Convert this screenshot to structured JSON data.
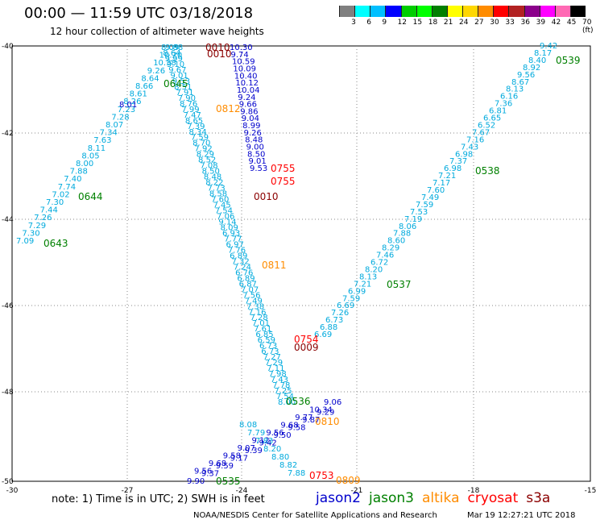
{
  "header": {
    "title": "00:00 — 11:59 UTC 03/18/2018",
    "subtitle": "12 hour collection of altimeter wave heights"
  },
  "legend": {
    "colors": [
      "#808080",
      "#00ffff",
      "#00bfff",
      "#0000ff",
      "#00cd00",
      "#00ff00",
      "#008000",
      "#ffff00",
      "#ffd700",
      "#ff8c00",
      "#ff0000",
      "#b22222",
      "#8b008b",
      "#ff00ff",
      "#ff69b4",
      "#000000"
    ],
    "labels": [
      "3",
      "6",
      "9",
      "12",
      "15",
      "18",
      "21",
      "24",
      "27",
      "30",
      "33",
      "36",
      "39",
      "42",
      "45",
      "70 (ft)"
    ]
  },
  "axes": {
    "lat_labels": [
      "-40",
      "-42",
      "-44",
      "-46",
      "-48",
      "-50"
    ],
    "lon_labels": [
      "-30",
      "-27",
      "-24",
      "-21",
      "-18",
      "-15"
    ]
  },
  "tracks": {
    "jason2_colors": "#0000cc",
    "swh_color": "#00aadd"
  },
  "wave_labels": {
    "track_left_cyan": [
      "7.09",
      "7.30",
      "7.29",
      "7.26",
      "7.44",
      "7.30",
      "7.02",
      "7.74",
      "7.40",
      "7.88",
      "8.00",
      "8.05",
      "8.11",
      "7.63",
      "7.34",
      "8.07",
      "7.28",
      "7.23",
      "8.26",
      "8.61",
      "8.66",
      "8.64",
      "9.26",
      "10.38",
      "10.20",
      "9.88"
    ],
    "track_left_blue": [
      "8.01"
    ],
    "track_mid_cyan": [
      "8.09",
      "8.64",
      "9.99",
      "9.10",
      "9.67",
      "9.01",
      "9.53",
      "8.51",
      "7.91",
      "7.90",
      "8.76",
      "7.99",
      "7.47",
      "8.65",
      "7.39",
      "8.34",
      "7.59",
      "8.70",
      "7.92",
      "8.29",
      "8.52",
      "7.08",
      "8.50",
      "8.48",
      "8.22",
      "7.73",
      "8.58",
      "7.60",
      "7.45",
      "7.54",
      "7.06",
      "9.14",
      "8.09",
      "6.93",
      "7.77",
      "6.97",
      "7.76",
      "6.89",
      "7.32",
      "7.24",
      "6.76",
      "6.89",
      "6.87",
      "7.07",
      "7.56",
      "7.49",
      "7.38",
      "7.16",
      "7.28",
      "7.01",
      "7.61",
      "6.85",
      "6.59",
      "6.73",
      "6.73",
      "7.27",
      "7.29",
      "7.11",
      "7.98",
      "7.43",
      "7.78",
      "7.25",
      "7.54",
      "8.00"
    ],
    "track_mid_blue": [
      "10.30",
      "9.74",
      "10.59",
      "10.09",
      "10.40",
      "10.12",
      "10.04",
      "9.24",
      "9.66",
      "9.86",
      "9.04",
      "8.99",
      "9.26",
      "8.48",
      "9.00",
      "8.50",
      "9.01",
      "9.53"
    ],
    "track_right_cyan": [
      "9.42",
      "8.17",
      "8.40",
      "8.92",
      "9.56",
      "8.67",
      "8.13",
      "6.16",
      "7.36",
      "6.81",
      "6.65",
      "6.52",
      "7.67",
      "7.16",
      "7.43",
      "6.98",
      "7.37",
      "6.98",
      "7.21",
      "7.17",
      "7.60",
      "7.49",
      "7.59",
      "7.53",
      "7.19",
      "8.06",
      "7.88",
      "8.60",
      "8.29",
      "7.46",
      "6.72",
      "8.20",
      "8.13",
      "7.21",
      "6.99",
      "7.59",
      "6.69",
      "7.26",
      "6.73",
      "6.88",
      "6.69"
    ],
    "track_bottom_blue": [
      "9.90",
      "9.56",
      "9.37",
      "9.68",
      "9.59",
      "9.58",
      "9.17",
      "9.07",
      "9.39",
      "9.12",
      "9.42",
      "9.56",
      "9.50",
      "9.68",
      "9.58",
      "9.77",
      "9.87",
      "10.34",
      "9.29",
      "9.06"
    ],
    "track_bottom_cyan": [
      "8.08",
      "7.79",
      "7.83",
      "8.20",
      "8.80",
      "8.82",
      "7.88"
    ],
    "time_labels": [
      {
        "text": "0010",
        "color": "#8b0000"
      },
      {
        "text": "0010",
        "color": "#8b0000"
      },
      {
        "text": "0645",
        "color": "#008000"
      },
      {
        "text": "0812",
        "color": "#ff8c00"
      },
      {
        "text": "0755",
        "color": "#ff0000"
      },
      {
        "text": "0755",
        "color": "#ff0000"
      },
      {
        "text": "0010",
        "color": "#8b0000"
      },
      {
        "text": "0644",
        "color": "#008000"
      },
      {
        "text": "0643",
        "color": "#008000"
      },
      {
        "text": "0811",
        "color": "#ff8c00"
      },
      {
        "text": "0754",
        "color": "#ff0000"
      },
      {
        "text": "0009",
        "color": "#8b0000"
      },
      {
        "text": "0536",
        "color": "#008000"
      },
      {
        "text": "0810",
        "color": "#ff8c00"
      },
      {
        "text": "0535",
        "color": "#008000"
      },
      {
        "text": "0753",
        "color": "#ff0000"
      },
      {
        "text": "0809",
        "color": "#ff8c00"
      },
      {
        "text": "0539",
        "color": "#008000"
      },
      {
        "text": "0538",
        "color": "#008000"
      },
      {
        "text": "0537",
        "color": "#008000"
      }
    ]
  },
  "footer": {
    "note": "note: 1) Time is in UTC; 2) SWH is in feet",
    "satellites": [
      {
        "name": "jason2",
        "color": "#0000cc"
      },
      {
        "name": "jason3",
        "color": "#008000"
      },
      {
        "name": "altika",
        "color": "#ff8c00"
      },
      {
        "name": "cryosat",
        "color": "#ff0000"
      },
      {
        "name": "s3a",
        "color": "#8b0000"
      }
    ],
    "credit": "NOAA/NESDIS Center for Satellite Applications and Research",
    "timestamp": "Mar 19 12:27:21 UTC 2018"
  }
}
